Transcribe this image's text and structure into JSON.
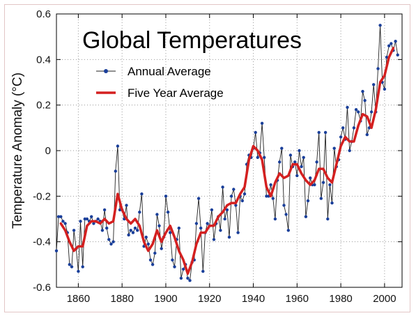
{
  "chart_data": {
    "type": "line",
    "title": "Global Temperatures",
    "xlabel": "",
    "ylabel": "Temperature Anomaly (°C)",
    "xlim": [
      1850,
      2008
    ],
    "ylim": [
      -0.6,
      0.6
    ],
    "xticks": [
      1860,
      1880,
      1900,
      1920,
      1940,
      1960,
      1980,
      2000
    ],
    "yticks": [
      -0.6,
      -0.4,
      -0.2,
      0,
      0.2,
      0.4,
      0.6
    ],
    "grid": true,
    "legend_position": "top-left",
    "series": [
      {
        "name": "Annual Average",
        "color": "#1a3f9a",
        "marker": "circle",
        "x": [
          1850,
          1851,
          1852,
          1853,
          1854,
          1855,
          1856,
          1857,
          1858,
          1859,
          1860,
          1861,
          1862,
          1863,
          1864,
          1865,
          1866,
          1867,
          1868,
          1869,
          1870,
          1871,
          1872,
          1873,
          1874,
          1875,
          1876,
          1877,
          1878,
          1879,
          1880,
          1881,
          1882,
          1883,
          1884,
          1885,
          1886,
          1887,
          1888,
          1889,
          1890,
          1891,
          1892,
          1893,
          1894,
          1895,
          1896,
          1897,
          1898,
          1899,
          1900,
          1901,
          1902,
          1903,
          1904,
          1905,
          1906,
          1907,
          1908,
          1909,
          1910,
          1911,
          1912,
          1913,
          1914,
          1915,
          1916,
          1917,
          1918,
          1919,
          1920,
          1921,
          1922,
          1923,
          1924,
          1925,
          1926,
          1927,
          1928,
          1929,
          1930,
          1931,
          1932,
          1933,
          1934,
          1935,
          1936,
          1937,
          1938,
          1939,
          1940,
          1941,
          1942,
          1943,
          1944,
          1945,
          1946,
          1947,
          1948,
          1949,
          1950,
          1951,
          1952,
          1953,
          1954,
          1955,
          1956,
          1957,
          1958,
          1959,
          1960,
          1961,
          1962,
          1963,
          1964,
          1965,
          1966,
          1967,
          1968,
          1969,
          1970,
          1971,
          1972,
          1973,
          1974,
          1975,
          1976,
          1977,
          1978,
          1979,
          1980,
          1981,
          1982,
          1983,
          1984,
          1985,
          1986,
          1987,
          1988,
          1989,
          1990,
          1991,
          1992,
          1993,
          1994,
          1995,
          1996,
          1997,
          1998,
          1999,
          2000,
          2001,
          2002,
          2003,
          2004,
          2005,
          2006
        ],
        "y": [
          -0.44,
          -0.29,
          -0.29,
          -0.31,
          -0.32,
          -0.36,
          -0.5,
          -0.51,
          -0.35,
          -0.43,
          -0.53,
          -0.31,
          -0.51,
          -0.3,
          -0.3,
          -0.31,
          -0.29,
          -0.32,
          -0.31,
          -0.3,
          -0.31,
          -0.35,
          -0.26,
          -0.34,
          -0.39,
          -0.41,
          -0.4,
          -0.09,
          0.02,
          -0.26,
          -0.26,
          -0.3,
          -0.24,
          -0.37,
          -0.35,
          -0.36,
          -0.34,
          -0.35,
          -0.27,
          -0.19,
          -0.42,
          -0.38,
          -0.41,
          -0.48,
          -0.5,
          -0.45,
          -0.28,
          -0.33,
          -0.43,
          -0.38,
          -0.2,
          -0.27,
          -0.36,
          -0.48,
          -0.51,
          -0.39,
          -0.34,
          -0.56,
          -0.52,
          -0.5,
          -0.56,
          -0.57,
          -0.49,
          -0.48,
          -0.32,
          -0.21,
          -0.34,
          -0.53,
          -0.36,
          -0.32,
          -0.33,
          -0.26,
          -0.39,
          -0.32,
          -0.29,
          -0.35,
          -0.16,
          -0.3,
          -0.26,
          -0.38,
          -0.2,
          -0.17,
          -0.24,
          -0.36,
          -0.2,
          -0.22,
          -0.19,
          -0.06,
          -0.02,
          -0.03,
          0.01,
          0.08,
          -0.03,
          -0.01,
          0.12,
          -0.03,
          -0.2,
          -0.2,
          -0.15,
          -0.21,
          -0.3,
          -0.13,
          -0.05,
          0.01,
          -0.24,
          -0.28,
          -0.35,
          -0.02,
          -0.07,
          -0.05,
          -0.11,
          0.0,
          -0.07,
          -0.03,
          -0.29,
          -0.22,
          -0.12,
          -0.15,
          -0.15,
          -0.05,
          0.08,
          -0.21,
          -0.14,
          0.08,
          -0.3,
          -0.15,
          -0.23,
          0.01,
          -0.07,
          -0.04,
          0.06,
          0.1,
          0.05,
          0.19,
          0.0,
          0.04,
          0.1,
          0.18,
          0.17,
          0.13,
          0.26,
          0.22,
          0.07,
          0.1,
          0.17,
          0.29,
          0.17,
          0.36,
          0.55,
          0.3,
          0.27,
          0.41,
          0.46,
          0.47,
          0.44,
          0.48,
          0.42
        ]
      },
      {
        "name": "Five Year Average",
        "color": "#d42020",
        "x": [
          1852,
          1854,
          1856,
          1858,
          1860,
          1862,
          1864,
          1866,
          1868,
          1870,
          1872,
          1874,
          1876,
          1878,
          1880,
          1882,
          1884,
          1886,
          1888,
          1890,
          1892,
          1894,
          1896,
          1898,
          1900,
          1902,
          1904,
          1906,
          1908,
          1910,
          1912,
          1914,
          1916,
          1918,
          1920,
          1922,
          1924,
          1926,
          1928,
          1930,
          1932,
          1934,
          1936,
          1938,
          1940,
          1942,
          1944,
          1946,
          1948,
          1950,
          1952,
          1954,
          1956,
          1958,
          1960,
          1962,
          1964,
          1966,
          1968,
          1970,
          1972,
          1974,
          1976,
          1978,
          1980,
          1982,
          1984,
          1986,
          1988,
          1990,
          1992,
          1994,
          1996,
          1998,
          2000,
          2002,
          2004
        ],
        "y": [
          -0.32,
          -0.35,
          -0.4,
          -0.44,
          -0.42,
          -0.42,
          -0.33,
          -0.31,
          -0.31,
          -0.32,
          -0.3,
          -0.32,
          -0.31,
          -0.19,
          -0.26,
          -0.3,
          -0.32,
          -0.3,
          -0.33,
          -0.4,
          -0.44,
          -0.41,
          -0.35,
          -0.4,
          -0.36,
          -0.33,
          -0.38,
          -0.44,
          -0.48,
          -0.54,
          -0.49,
          -0.41,
          -0.36,
          -0.36,
          -0.33,
          -0.33,
          -0.29,
          -0.27,
          -0.24,
          -0.23,
          -0.23,
          -0.19,
          -0.16,
          -0.04,
          0.02,
          0.0,
          -0.04,
          -0.16,
          -0.2,
          -0.14,
          -0.1,
          -0.12,
          -0.11,
          -0.06,
          -0.06,
          -0.1,
          -0.13,
          -0.15,
          -0.13,
          -0.08,
          -0.08,
          -0.12,
          -0.14,
          -0.06,
          0.02,
          0.06,
          0.04,
          0.04,
          0.11,
          0.16,
          0.15,
          0.1,
          0.18,
          0.3,
          0.33,
          0.41,
          0.45
        ]
      }
    ]
  }
}
